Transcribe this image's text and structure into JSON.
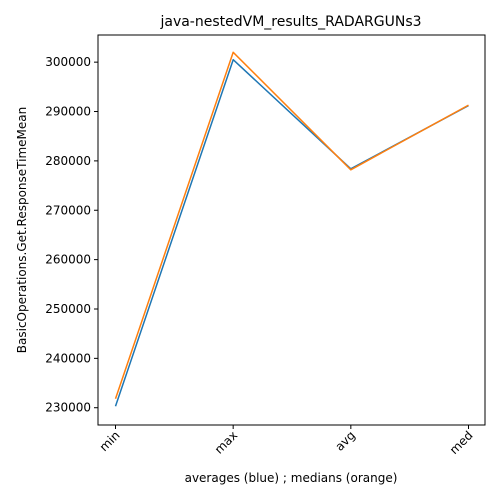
{
  "chart_data": {
    "type": "line",
    "title": "java-nestedVM_results_RADARGUNs3",
    "xlabel": "averages (blue) ; medians (orange)",
    "ylabel": "BasicOperations.Get.ResponseTimeMean",
    "categories": [
      "min",
      "max",
      "avg",
      "med"
    ],
    "ylim": [
      226500,
      305500
    ],
    "yticks": [
      230000,
      240000,
      250000,
      260000,
      270000,
      280000,
      290000,
      300000
    ],
    "ytick_labels": [
      "230000",
      "240000",
      "250000",
      "260000",
      "270000",
      "280000",
      "290000",
      "300000"
    ],
    "grid": false,
    "series": [
      {
        "color": "#1f77b4",
        "values": [
          230300,
          300500,
          278400,
          291200
        ]
      },
      {
        "color": "#ff7f0e",
        "values": [
          231800,
          302000,
          278200,
          291300
        ]
      }
    ]
  }
}
